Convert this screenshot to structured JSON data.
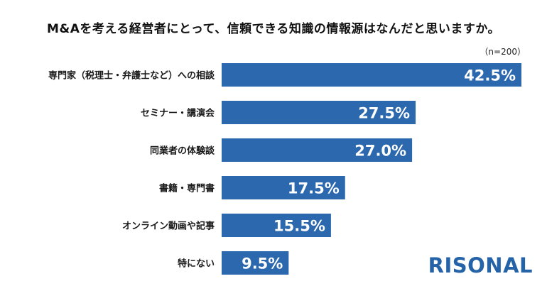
{
  "header": {
    "title": "M&Aを考える経営者にとって、信頼できる知識の情報源はなんだと思いますか。",
    "note": "（n=200）"
  },
  "brand": {
    "logo_text": "RISONAL"
  },
  "colors": {
    "bar": "#2c68ae",
    "logo": "#2563a8",
    "label": "#1a1a1a",
    "value_label": "#ffffff"
  },
  "chart_data": {
    "type": "bar",
    "orientation": "horizontal",
    "categories": [
      "専門家（税理士・弁護士など）への相談",
      "セミナー・講演会",
      "同業者の体験談",
      "書籍・専門書",
      "オンライン動画や記事",
      "特にない"
    ],
    "values": [
      42.5,
      27.5,
      27.0,
      17.5,
      15.5,
      9.5
    ],
    "value_labels": [
      "42.5%",
      "27.5%",
      "27.0%",
      "17.5%",
      "15.5%",
      "9.5%"
    ],
    "xlim": [
      0,
      42.5
    ],
    "grid": false,
    "legend": "none"
  }
}
